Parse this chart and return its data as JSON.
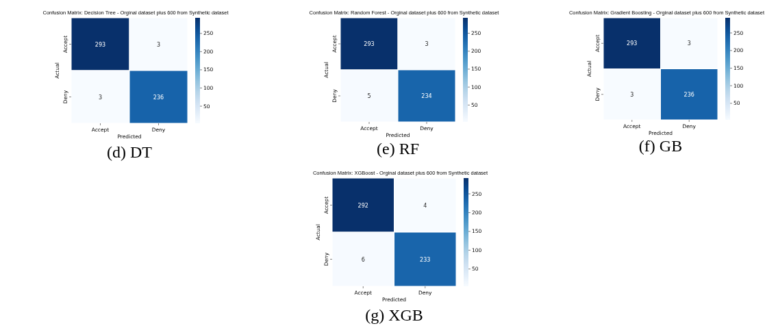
{
  "chart_data": [
    {
      "type": "heatmap",
      "title": "Confusion Matrix: Decision Tree - Orginal dataset plus 600 from Synthetic dataset",
      "xlabel": "Predicted",
      "ylabel": "Actual",
      "categories": [
        "Accept",
        "Deny"
      ],
      "y_categories": [
        "Accept",
        "Deny"
      ],
      "cells": [
        [
          293,
          3
        ],
        [
          3,
          236
        ]
      ],
      "data_labels": true,
      "clim": [
        3,
        293
      ],
      "cticks": [
        50,
        100,
        150,
        200,
        250
      ],
      "annotations": [
        "(d) DT"
      ]
    },
    {
      "type": "heatmap",
      "title": "Confusion Matrix: Random Forest - Orginal dataset plus 600 from Synthetic dataset",
      "xlabel": "Predicted",
      "ylabel": "Actual",
      "categories": [
        "Accept",
        "Deny"
      ],
      "y_categories": [
        "Accept",
        "Deny"
      ],
      "cells": [
        [
          293,
          3
        ],
        [
          5,
          234
        ]
      ],
      "data_labels": true,
      "clim": [
        3,
        293
      ],
      "cticks": [
        50,
        100,
        150,
        200,
        250
      ],
      "annotations": [
        "(e) RF"
      ]
    },
    {
      "type": "heatmap",
      "title": "Confusion Matrix: Gradient Boosting - Orginal dataset plus 600 from Synthetic dataset",
      "xlabel": "Predicted",
      "ylabel": "Actual",
      "categories": [
        "Accept",
        "Deny"
      ],
      "y_categories": [
        "Accept",
        "Deny"
      ],
      "cells": [
        [
          293,
          3
        ],
        [
          3,
          236
        ]
      ],
      "data_labels": true,
      "clim": [
        3,
        293
      ],
      "cticks": [
        50,
        100,
        150,
        200,
        250
      ],
      "annotations": [
        "(f) GB"
      ]
    },
    {
      "type": "heatmap",
      "title": "Confusion Matrix: XGBoost - Orginal dataset plus 600 from Synthetic dataset",
      "xlabel": "Predicted",
      "ylabel": "Actual",
      "categories": [
        "Accept",
        "Deny"
      ],
      "y_categories": [
        "Accept",
        "Deny"
      ],
      "cells": [
        [
          292,
          4
        ],
        [
          6,
          233
        ]
      ],
      "data_labels": true,
      "clim": [
        4,
        292
      ],
      "cticks": [
        50,
        100,
        150,
        200,
        250
      ],
      "annotations": [
        "(g) XGB"
      ]
    }
  ]
}
